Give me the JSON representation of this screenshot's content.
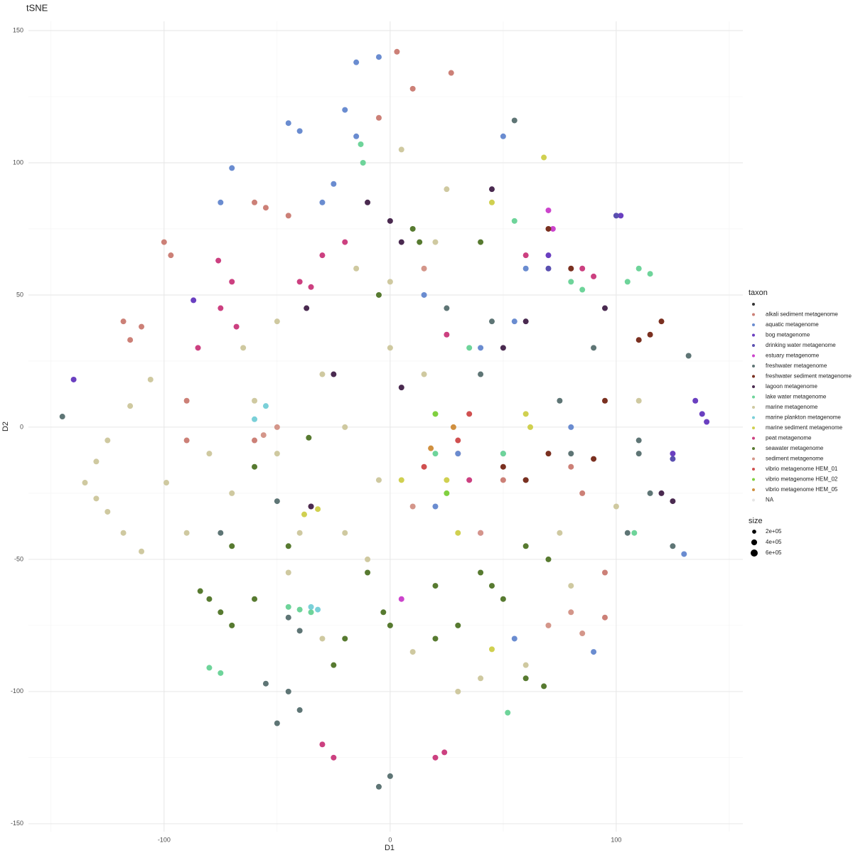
{
  "chart_data": {
    "type": "scatter",
    "title": "tSNE",
    "x_label": "D1",
    "y_label": "D2",
    "xlim": [
      -160,
      156
    ],
    "ylim": [
      -153,
      153.5
    ],
    "xticks": [
      -100,
      0,
      100
    ],
    "yticks": [
      -150,
      -100,
      -50,
      0,
      50,
      100,
      150
    ],
    "xminor": [
      -150,
      -50,
      50,
      150
    ],
    "yminor": [
      -125,
      -75,
      -25,
      25,
      75,
      125
    ],
    "grid": true,
    "legend_title": "taxon",
    "size_legend": {
      "title": "size",
      "values": [
        {
          "value": 200000,
          "label": "2e+05"
        },
        {
          "value": 400000,
          "label": "4e+05"
        },
        {
          "value": 600000,
          "label": "6e+05"
        }
      ]
    },
    "series": [
      {
        "name": null,
        "color": "#333333",
        "x": [],
        "y": []
      },
      {
        "name": "alkali sediment metagenome",
        "color": "#cc8077",
        "x": [
          -100,
          -97,
          -118,
          -115,
          -110,
          -60,
          -55,
          -45,
          -90,
          -90,
          80,
          85,
          95,
          -35,
          30,
          50,
          -60,
          3,
          10,
          27,
          -5,
          95
        ],
        "y": [
          70,
          65,
          40,
          33,
          38,
          85,
          83,
          80,
          -5,
          10,
          -15,
          -25,
          -55,
          -30,
          -10,
          -20,
          -5,
          142,
          128,
          134,
          117,
          -72
        ]
      },
      {
        "name": "aquatic metagenome",
        "color": "#6a8cd0",
        "x": [
          -45,
          -40,
          -20,
          -15,
          -25,
          -30,
          -70,
          -75,
          15,
          40,
          30,
          20,
          50,
          80,
          90,
          55,
          130,
          -5,
          -15,
          50,
          60,
          55
        ],
        "y": [
          115,
          112,
          120,
          110,
          92,
          85,
          98,
          85,
          50,
          30,
          -10,
          -30,
          -10,
          0,
          -85,
          -80,
          -48,
          140,
          138,
          110,
          60,
          40
        ]
      },
      {
        "name": "bog metagenome",
        "color": "#6a3fc0",
        "x": [
          135,
          138,
          140,
          125,
          102,
          -140,
          70,
          -87
        ],
        "y": [
          10,
          5,
          2,
          -10,
          80,
          18,
          65,
          48
        ]
      },
      {
        "name": "drinking water metagenome",
        "color": "#5a4fb0",
        "x": [
          100,
          70,
          125
        ],
        "y": [
          80,
          60,
          -12
        ]
      },
      {
        "name": "estuary metagenome",
        "color": "#cc44cc",
        "x": [
          70,
          72,
          5,
          40
        ],
        "y": [
          82,
          75,
          -65,
          -40
        ]
      },
      {
        "name": "freshwater metagenome",
        "color": "#5e7575",
        "x": [
          -145,
          -45,
          -55,
          -40,
          -50,
          0,
          -5,
          55,
          110,
          115,
          105,
          80,
          75,
          90,
          40,
          45,
          25,
          60,
          -45,
          -40,
          -75,
          125,
          132,
          -50,
          110
        ],
        "y": [
          4,
          -100,
          -97,
          -107,
          -112,
          -132,
          -136,
          116,
          -5,
          -25,
          -40,
          -10,
          10,
          30,
          20,
          40,
          45,
          -20,
          -72,
          -77,
          -40,
          -45,
          27,
          -28,
          -10
        ]
      },
      {
        "name": "freshwater sediment metagenome",
        "color": "#7a3020",
        "x": [
          115,
          120,
          110,
          90,
          95,
          70,
          60,
          70,
          80,
          50
        ],
        "y": [
          35,
          40,
          33,
          -12,
          10,
          -10,
          -20,
          75,
          60,
          -15
        ]
      },
      {
        "name": "lagoon metagenome",
        "color": "#4a2a50",
        "x": [
          -10,
          0,
          5,
          -25,
          50,
          60,
          95,
          120,
          125,
          5,
          -35,
          -37,
          45
        ],
        "y": [
          85,
          78,
          70,
          20,
          30,
          40,
          45,
          -25,
          -28,
          15,
          -30,
          45,
          90
        ]
      },
      {
        "name": "lake water metagenome",
        "color": "#6ed49a",
        "x": [
          -13,
          -12,
          -40,
          -45,
          -35,
          -75,
          -80,
          80,
          85,
          110,
          105,
          115,
          55,
          35,
          50,
          20,
          52,
          108
        ],
        "y": [
          107,
          100,
          -69,
          -68,
          -70,
          -93,
          -91,
          55,
          52,
          60,
          55,
          58,
          78,
          30,
          -10,
          -10,
          -108,
          -40
        ]
      },
      {
        "name": "marine metagenome",
        "color": "#cfc9a0",
        "x": [
          -106,
          -115,
          -125,
          -130,
          -135,
          -130,
          -125,
          -118,
          -110,
          -99,
          -30,
          0,
          -20,
          -50,
          -40,
          -10,
          10,
          30,
          60,
          80,
          110,
          100,
          -60,
          -80,
          -50,
          5,
          20,
          25,
          -30,
          -20,
          15,
          -5,
          -70,
          -45,
          0,
          40,
          75,
          -15,
          -65,
          -90
        ],
        "y": [
          18,
          8,
          -5,
          -13,
          -21,
          -27,
          -32,
          -40,
          -47,
          -21,
          20,
          30,
          0,
          -10,
          -40,
          -50,
          -85,
          -100,
          -90,
          -60,
          10,
          -30,
          10,
          -10,
          40,
          105,
          70,
          90,
          -80,
          -40,
          20,
          -20,
          -25,
          -55,
          55,
          -95,
          -40,
          60,
          30,
          -40
        ]
      },
      {
        "name": "marine plankton metagenome",
        "color": "#7ad0d8",
        "x": [
          -55,
          -60,
          -35,
          -32
        ],
        "y": [
          8,
          3,
          -68,
          -69
        ]
      },
      {
        "name": "marine sediment metagenome",
        "color": "#d0d050",
        "x": [
          -38,
          -32,
          5,
          60,
          62,
          25,
          30,
          68,
          45,
          45
        ],
        "y": [
          -33,
          -31,
          -20,
          5,
          0,
          -20,
          -40,
          102,
          85,
          -84
        ]
      },
      {
        "name": "peat metagenome",
        "color": "#cc4080",
        "x": [
          -76,
          -70,
          -75,
          -68,
          -40,
          -20,
          -30,
          -35,
          -25,
          -30,
          20,
          24,
          85,
          90,
          60,
          25,
          35,
          -85
        ],
        "y": [
          63,
          55,
          45,
          38,
          55,
          70,
          65,
          53,
          -125,
          -120,
          -125,
          -123,
          60,
          57,
          65,
          35,
          -20,
          30
        ]
      },
      {
        "name": "seawater metagenome",
        "color": "#577a30",
        "x": [
          -84,
          -80,
          -75,
          -70,
          -60,
          -70,
          -36,
          -60,
          -10,
          -3,
          0,
          20,
          40,
          60,
          70,
          60,
          68,
          30,
          50,
          10,
          13,
          40,
          -5,
          45,
          20,
          -20,
          -25,
          -45
        ],
        "y": [
          -62,
          -65,
          -70,
          -75,
          -65,
          -45,
          -4,
          -15,
          -55,
          -70,
          -75,
          -60,
          -55,
          -45,
          -50,
          -95,
          -98,
          -75,
          -65,
          75,
          70,
          70,
          50,
          -60,
          -80,
          -80,
          -90,
          -45
        ]
      },
      {
        "name": "sediment metagenome",
        "color": "#d4968a",
        "x": [
          10,
          40,
          80,
          85,
          -50,
          -56,
          70,
          15
        ],
        "y": [
          -30,
          -40,
          -70,
          -78,
          0,
          -3,
          -75,
          60
        ]
      },
      {
        "name": "vibrio metagenome HEM_01",
        "color": "#d05050",
        "x": [
          30,
          15,
          35
        ],
        "y": [
          -5,
          -15,
          5
        ]
      },
      {
        "name": "vibrio metagenome HEM_02",
        "color": "#80d040",
        "x": [
          20,
          25
        ],
        "y": [
          5,
          -25
        ]
      },
      {
        "name": "vibrio metagenome HEM_05",
        "color": "#d09040",
        "x": [
          18,
          28
        ],
        "y": [
          -8,
          0
        ]
      },
      {
        "name": "NA",
        "color": "#e6e6e6",
        "x": [],
        "y": []
      }
    ]
  }
}
